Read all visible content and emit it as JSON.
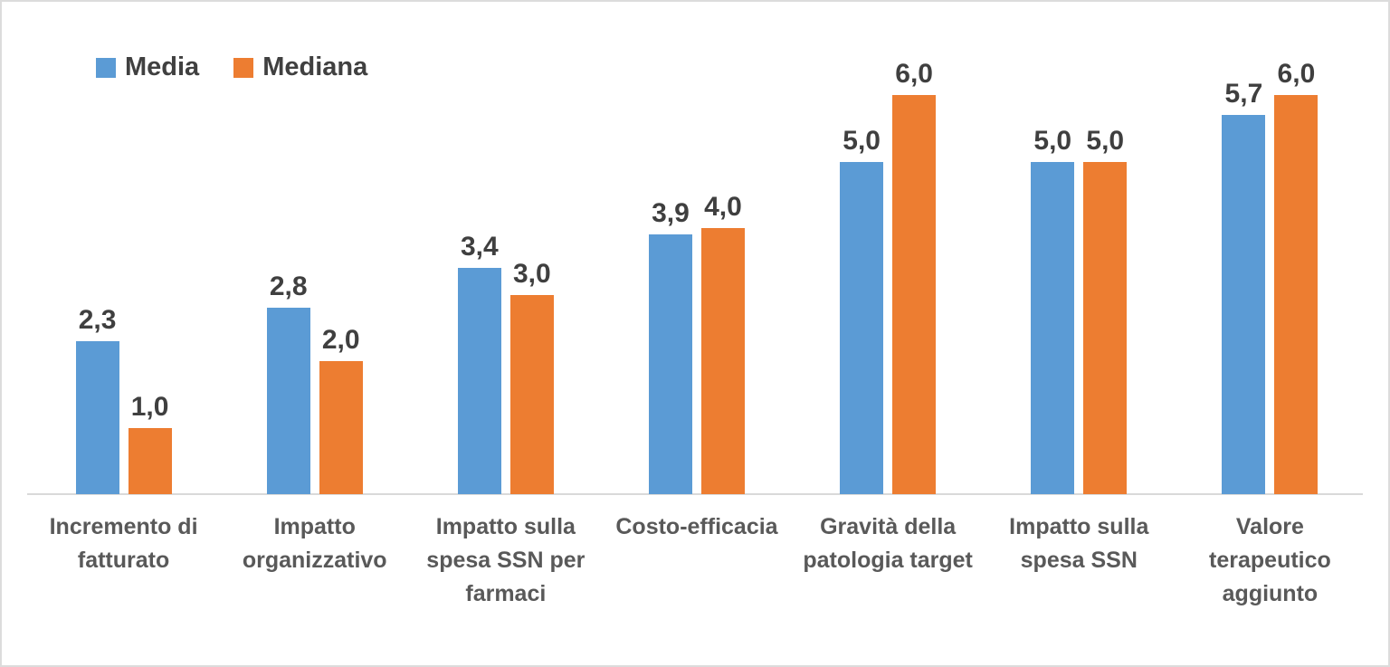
{
  "chart_data": {
    "type": "bar",
    "title": "",
    "categories": [
      "Incremento di fatturato",
      "Impatto organizzativo",
      "Impatto sulla spesa SSN per farmaci",
      "Costo-efficacia",
      "Gravità della patologia target",
      "Impatto sulla spesa SSN",
      "Valore terapeutico aggiunto"
    ],
    "series": [
      {
        "name": "Media",
        "color": "#5B9BD5",
        "values": [
          2.3,
          2.8,
          3.4,
          3.9,
          5.0,
          5.0,
          5.7
        ],
        "labels": [
          "2,3",
          "2,8",
          "3,4",
          "3,9",
          "5,0",
          "5,0",
          "5,7"
        ]
      },
      {
        "name": "Mediana",
        "color": "#ED7D31",
        "values": [
          1.0,
          2.0,
          3.0,
          4.0,
          6.0,
          5.0,
          6.0
        ],
        "labels": [
          "1,0",
          "2,0",
          "3,0",
          "4,0",
          "6,0",
          "5,0",
          "6,0"
        ]
      }
    ],
    "ylim": [
      0,
      7.4
    ],
    "y_axis_visible": false,
    "x_axis_line": true,
    "gridlines": false,
    "legend_position": "top-left",
    "data_labels": true,
    "decimal_separator": ","
  },
  "colors": {
    "media_bar": "#5B9BD5",
    "mediana_bar": "#ED7D31",
    "axis_line": "#d9d9d9",
    "frame_border": "#dcdcdc",
    "data_label_text": "#3f3f3f",
    "category_text": "#595959",
    "legend_text": "#404040",
    "background": "#ffffff"
  }
}
